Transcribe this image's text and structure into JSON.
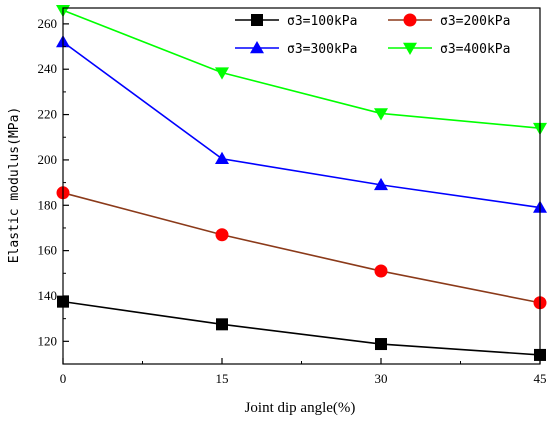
{
  "chart_data": {
    "type": "line",
    "title": "",
    "xlabel": "Joint dip angle(%)",
    "ylabel": "Elastic modulus(MPa)",
    "x": [
      0,
      15,
      30,
      45
    ],
    "xlim": [
      0,
      45
    ],
    "ylim": [
      110,
      267
    ],
    "xticks": [
      0,
      15,
      30,
      45
    ],
    "yticks": [
      120,
      140,
      160,
      180,
      200,
      220,
      240,
      260
    ],
    "grid": false,
    "legend_position": "top-right",
    "series": [
      {
        "name": "σ3=100kPa",
        "marker": "square",
        "color": "#000000",
        "values": [
          137.5,
          127.5,
          118.8,
          114.0
        ]
      },
      {
        "name": "σ3=200kPa",
        "marker": "circle",
        "color": "#ff0000",
        "line_color": "#8b3a1a",
        "values": [
          185.5,
          167.0,
          151.0,
          137.0
        ]
      },
      {
        "name": "σ3=300kPa",
        "marker": "triangle-up",
        "color": "#0000ff",
        "values": [
          252.0,
          200.5,
          189.0,
          179.0
        ]
      },
      {
        "name": "σ3=400kPa",
        "marker": "triangle-down",
        "color": "#00ff00",
        "values": [
          266.0,
          238.5,
          220.5,
          214.0
        ]
      }
    ]
  }
}
